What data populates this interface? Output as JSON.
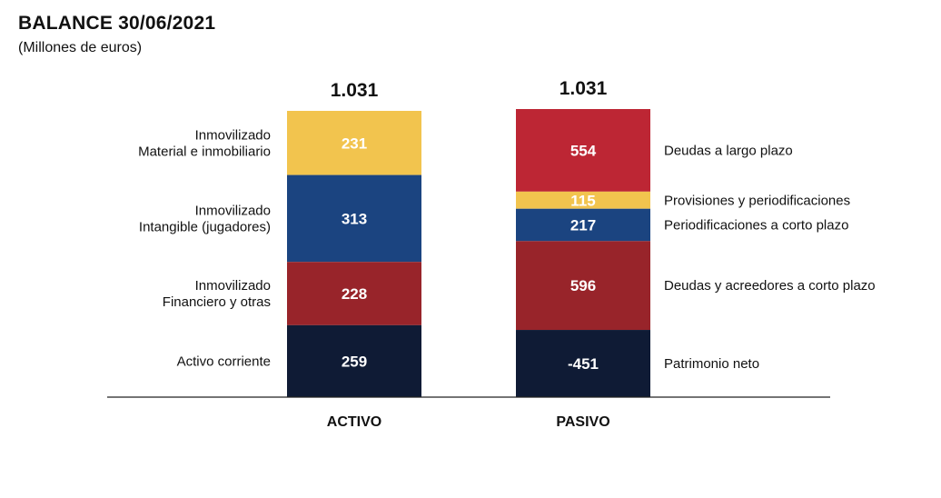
{
  "header": {
    "title": "BALANCE 30/06/2021",
    "subtitle": "(Millones de euros)"
  },
  "chart_data": {
    "type": "bar",
    "stacked": true,
    "categories": [
      "ACTIVO",
      "PASIVO"
    ],
    "totals": [
      "1.031",
      "1.031"
    ],
    "bars": [
      {
        "name": "ACTIVO",
        "total": "1.031",
        "segments": [
          {
            "label": [
              "Inmovilizado",
              "Material e inmobiliario"
            ],
            "value": 231,
            "color": "#F2C44E"
          },
          {
            "label": [
              "Inmovilizado",
              "Intangible (jugadores)"
            ],
            "value": 313,
            "color": "#1B4480"
          },
          {
            "label": [
              "Inmovilizado",
              "Financiero y otras"
            ],
            "value": 228,
            "color": "#98242A"
          },
          {
            "label": [
              "Activo corriente"
            ],
            "value": 259,
            "color": "#0F1B35"
          }
        ]
      },
      {
        "name": "PASIVO",
        "total": "1.031",
        "segments": [
          {
            "label": [
              "Deudas a largo plazo"
            ],
            "value": 554,
            "color": "#BD2634"
          },
          {
            "label": [
              "Provisiones y periodificaciones"
            ],
            "value": 115,
            "color": "#F2C44E"
          },
          {
            "label": [
              "Periodificaciones a corto plazo"
            ],
            "value": 217,
            "color": "#1B4480"
          },
          {
            "label": [
              "Deudas y acreedores a corto plazo"
            ],
            "value": 596,
            "color": "#98242A"
          },
          {
            "label": [
              "Patrimonio neto"
            ],
            "value": -451,
            "color": "#0F1B35"
          }
        ]
      }
    ],
    "baseline_color": "#222222"
  }
}
